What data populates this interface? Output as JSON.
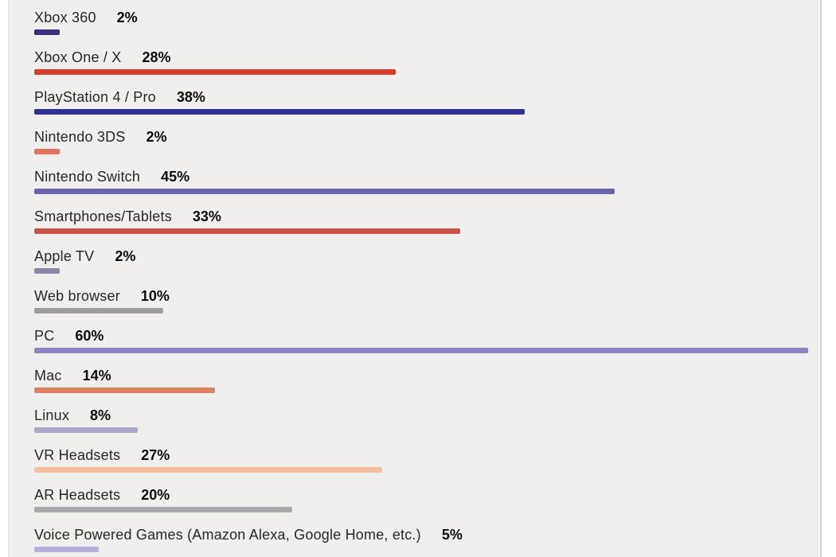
{
  "chart_data": {
    "type": "bar",
    "orientation": "horizontal",
    "title": "",
    "xlabel": "",
    "ylabel": "",
    "xlim": [
      0,
      61
    ],
    "grid": false,
    "legend": "none",
    "value_suffix": "%",
    "categories": [
      "Xbox 360",
      "Xbox One / X",
      "PlayStation 4 / Pro",
      "Nintendo 3DS",
      "Nintendo Switch",
      "Smartphones/Tablets",
      "Apple TV",
      "Web browser",
      "PC",
      "Mac",
      "Linux",
      "VR Headsets",
      "AR Headsets",
      "Voice Powered Games (Amazon Alexa, Google Home, etc.)"
    ],
    "values": [
      2,
      28,
      38,
      2,
      45,
      33,
      2,
      10,
      60,
      14,
      8,
      27,
      20,
      5
    ],
    "value_labels": [
      "2%",
      "28%",
      "38%",
      "2%",
      "45%",
      "33%",
      "2%",
      "10%",
      "60%",
      "14%",
      "8%",
      "27%",
      "20%",
      "5%"
    ],
    "bar_colors": [
      "#37307d",
      "#d83c2c",
      "#2e3191",
      "#e0745c",
      "#6b65ae",
      "#c85148",
      "#8b85a9",
      "#9d9da0",
      "#8d85c1",
      "#e08166",
      "#aba7c8",
      "#f3bda2",
      "#a9a9ab",
      "#b7aeda"
    ]
  },
  "theme": {
    "page_bg": "#ffffff",
    "card_bg": "#f0efee",
    "edge_line": "#d2d1d0",
    "category_text": "#2a2627",
    "value_text": "#0c0c0c"
  }
}
